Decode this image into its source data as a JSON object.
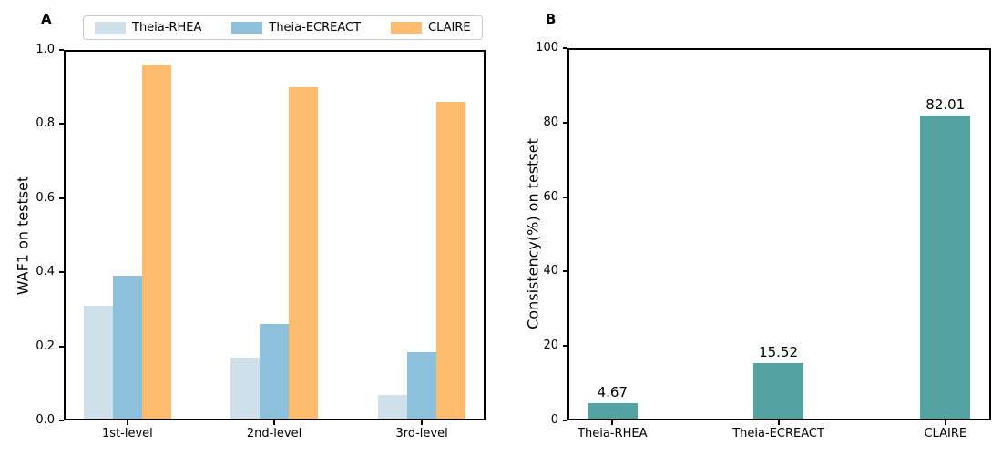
{
  "figure": {
    "background": "#ffffff"
  },
  "chart_data": [
    {
      "type": "bar",
      "panel_label": "A",
      "categories": [
        "1st-level",
        "2nd-level",
        "3rd-level"
      ],
      "series": [
        {
          "name": "Theia-RHEA",
          "color": "#cfe0eb",
          "values": [
            0.31,
            0.17,
            0.07
          ]
        },
        {
          "name": "Theia-ECREACT",
          "color": "#8dc0da",
          "values": [
            0.39,
            0.26,
            0.185
          ]
        },
        {
          "name": "CLAIRE",
          "color": "#fdbb6e",
          "values": [
            0.96,
            0.9,
            0.86
          ]
        }
      ],
      "xlabel": "",
      "ylabel": "WAF1 on testset",
      "ylim": [
        0,
        1.0
      ],
      "yticks": [
        0,
        0.2,
        0.4,
        0.6,
        0.8,
        1.0
      ],
      "ytick_labels": [
        "0.0",
        "0.2",
        "0.4",
        "0.6",
        "0.8",
        "1.0"
      ],
      "legend": {
        "position": "top",
        "entries": [
          "Theia-RHEA",
          "Theia-ECREACT",
          "CLAIRE"
        ]
      },
      "grid": false
    },
    {
      "type": "bar",
      "panel_label": "B",
      "categories": [
        "Theia-RHEA",
        "Theia-ECREACT",
        "CLAIRE"
      ],
      "values": [
        4.67,
        15.52,
        82.01
      ],
      "bar_labels": [
        "4.67",
        "15.52",
        "82.01"
      ],
      "bar_color": "#54a3a2",
      "xlabel": "",
      "ylabel": "Consistency(%) on testset",
      "ylim": [
        0,
        100
      ],
      "yticks": [
        0,
        20,
        40,
        60,
        80,
        100
      ],
      "ytick_labels": [
        "0",
        "20",
        "40",
        "60",
        "80",
        "100"
      ],
      "grid": false
    }
  ]
}
